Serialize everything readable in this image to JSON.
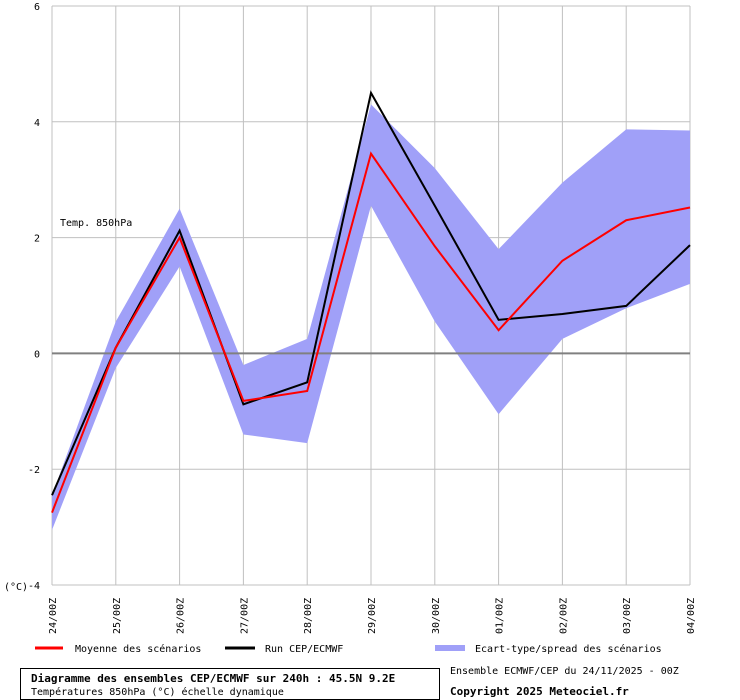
{
  "chart_data": {
    "type": "line",
    "annotation": "Temp. 850hPa",
    "ylabel": "(°C)",
    "ylim": [
      -4,
      6
    ],
    "y_ticks": [
      -4,
      -2,
      0,
      2,
      4,
      6
    ],
    "y_tick_labels": [
      "-4",
      "-2",
      "0",
      "2",
      "4",
      "6"
    ],
    "x": [
      "24/00Z",
      "25/00Z",
      "26/00Z",
      "27/00Z",
      "28/00Z",
      "29/00Z",
      "30/00Z",
      "01/00Z",
      "02/00Z",
      "03/00Z",
      "04/00Z"
    ],
    "x_tick_hours": [
      0,
      24,
      48,
      72,
      96,
      120,
      144,
      168,
      192,
      216,
      240
    ],
    "grid": true,
    "series": [
      {
        "name": "Moyenne des scénarios",
        "color": "#ff0000",
        "hours": [
          0,
          24,
          48,
          72,
          96,
          120,
          144,
          168,
          192,
          216,
          240
        ],
        "values": [
          -2.75,
          0.1,
          2.0,
          -0.82,
          -0.65,
          3.45,
          1.85,
          0.4,
          1.6,
          2.3,
          2.52
        ]
      },
      {
        "name": "Run CEP/ECMWF",
        "color": "#000000",
        "hours": [
          0,
          24,
          48,
          72,
          96,
          120,
          144,
          168,
          192,
          216,
          240
        ],
        "values": [
          -2.45,
          0.1,
          2.12,
          -0.88,
          -0.5,
          4.5,
          2.55,
          0.58,
          0.68,
          0.82,
          1.87
        ]
      },
      {
        "name": "Ecart-type/spread des scénarios",
        "color": "#a0a0f8",
        "type": "band",
        "hours": [
          0,
          24,
          48,
          72,
          96,
          120,
          144,
          168,
          192,
          216,
          240
        ],
        "upper": [
          -2.45,
          0.55,
          2.5,
          -0.2,
          0.25,
          4.3,
          3.2,
          1.8,
          2.95,
          3.87,
          3.85
        ],
        "lower": [
          -3.05,
          -0.25,
          1.5,
          -1.4,
          -1.55,
          2.55,
          0.55,
          -1.05,
          0.25,
          0.78,
          1.2
        ]
      }
    ],
    "legend_position": "bottom"
  },
  "footer": {
    "title": "Diagramme des ensembles CEP/ECMWF sur 240h : 45.5N 9.2E",
    "subtitle": "Températures 850hPa (°C) échelle dynamique",
    "run_info": "Ensemble ECMWF/CEP du 24/11/2025 - 00Z",
    "copyright": "Copyright 2025 Meteociel.fr"
  }
}
